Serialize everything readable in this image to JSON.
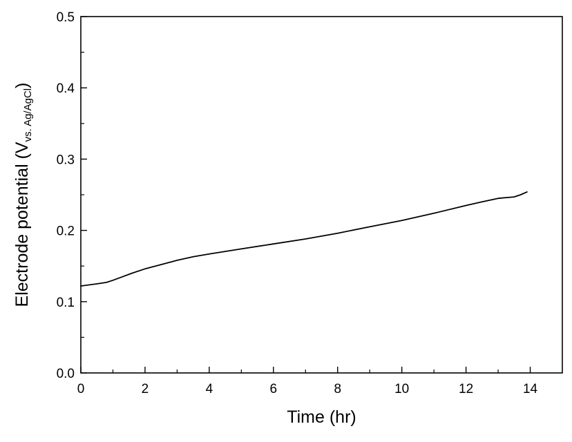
{
  "chart_data": {
    "type": "line",
    "title": "",
    "xlabel": "Time (hr)",
    "ylabel": {
      "main": "Electrode potential (V",
      "subscript": "vs. Ag/AgCl",
      "close": ")"
    },
    "xlim": [
      0,
      15
    ],
    "ylim": [
      0,
      0.5
    ],
    "x_ticks": [
      0,
      2,
      4,
      6,
      8,
      10,
      12,
      14
    ],
    "x_tick_labels": [
      "0",
      "2",
      "4",
      "6",
      "8",
      "10",
      "12",
      "14"
    ],
    "x_minor_ticks": [
      1,
      3,
      5,
      7,
      9,
      11,
      13
    ],
    "y_ticks": [
      0,
      0.1,
      0.2,
      0.3,
      0.4,
      0.5
    ],
    "y_tick_labels": [
      "0.0",
      "0.1",
      "0.2",
      "0.3",
      "0.4",
      "0.5"
    ],
    "y_minor_ticks": [
      0.05,
      0.15,
      0.25,
      0.35,
      0.45
    ],
    "grid": false,
    "series": [
      {
        "color": "#000000",
        "x": [
          0,
          0.5,
          0.8,
          1.0,
          1.3,
          1.6,
          2.0,
          2.5,
          3.0,
          3.5,
          4.0,
          5.0,
          6.0,
          7.0,
          8.0,
          9.0,
          10.0,
          11.0,
          12.0,
          12.5,
          13.0,
          13.5,
          13.7,
          13.9
        ],
        "y": [
          0.122,
          0.125,
          0.127,
          0.13,
          0.135,
          0.14,
          0.146,
          0.152,
          0.158,
          0.163,
          0.167,
          0.174,
          0.181,
          0.188,
          0.196,
          0.205,
          0.214,
          0.224,
          0.235,
          0.24,
          0.245,
          0.247,
          0.25,
          0.254
        ]
      }
    ]
  }
}
